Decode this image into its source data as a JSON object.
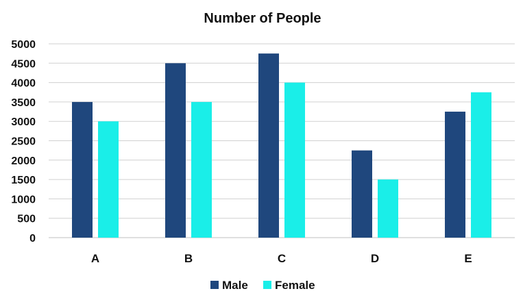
{
  "chart_data": {
    "type": "bar",
    "title": "Number of People",
    "xlabel": "",
    "ylabel": "",
    "categories": [
      "A",
      "B",
      "C",
      "D",
      "E"
    ],
    "series": [
      {
        "name": "Male",
        "color": "#1f477d",
        "values": [
          3500,
          4500,
          4750,
          2250,
          3250
        ]
      },
      {
        "name": "Female",
        "color": "#1aeee8",
        "values": [
          3000,
          3500,
          4000,
          1500,
          3750
        ]
      }
    ],
    "ylim": [
      0,
      5000
    ],
    "yticks": [
      0,
      500,
      1000,
      1500,
      2000,
      2500,
      3000,
      3500,
      4000,
      4500,
      5000
    ],
    "grid": true,
    "legend_position": "bottom"
  }
}
